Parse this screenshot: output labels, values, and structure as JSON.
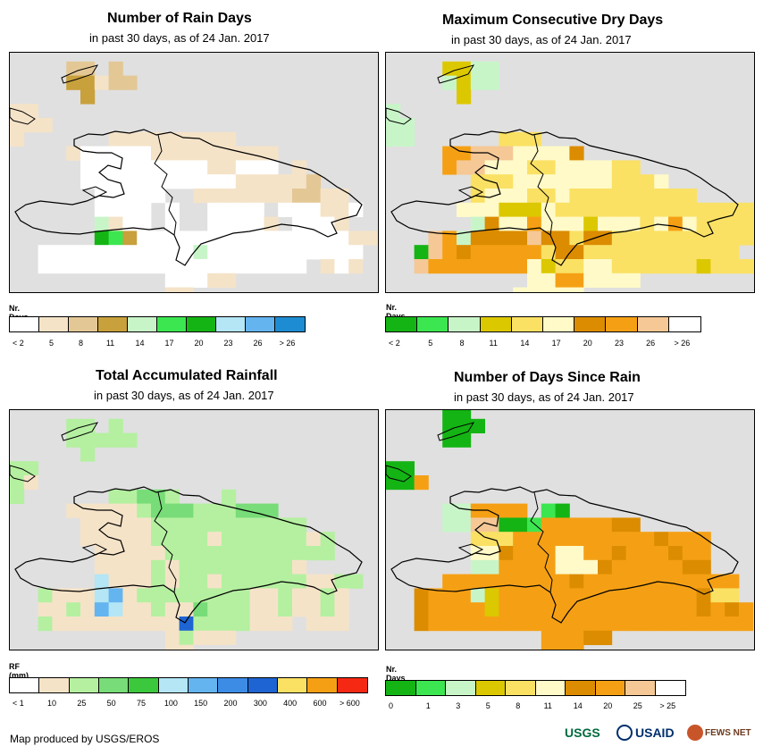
{
  "panels": [
    {
      "title": "Number of Rain Days",
      "subtitle": "in past 30 days, as of 24 Jan. 2017",
      "legend_title": "Nr. Days",
      "legend_colors": [
        "#ffffff",
        "#f5e3c8",
        "#e3c896",
        "#c8a03c",
        "#c8f5c8",
        "#3ce650",
        "#14b414",
        "#b4e6f5",
        "#64b4f0",
        "#1e8cd2"
      ],
      "legend_labels": [
        "< 2",
        "5",
        "8",
        "11",
        "14",
        "17",
        "20",
        "23",
        "26",
        "> 26"
      ],
      "grid": [
        "..........................",
        "....cc.c..................",
        "....ddbcc.................",
        ".....d....................",
        "bb........................",
        "bbb.......................",
        "b......bbbbbbbbb..........",
        "....baaaaabbbbbbbbb.......",
        ".....aaaaaaaaabbaaa.b.....",
        ".....aaaaaaaaaaabbbbbc....",
        "......aaaaa..bbbbbbbccbb..",
        "......aaaa.a..aaaa.aaabba.",
        "......ebaa.a..aaaab.aaab..",
        "......gfdaaaaaaaaaaaaaaabb",
        "..aaaaaaaaaaaeaaaaaaaaaaa.",
        "..aaaaaaaaaaaaaaaaaaa.bab.",
        "...........aaabb..........",
        "...........bb.............",
        "..........................",
        ".........................."
      ]
    },
    {
      "title": "Maximum Consecutive Dry Days",
      "subtitle": "in past 30 days, as of 24 Jan. 2017",
      "legend_title": "Nr. Days",
      "legend_colors": [
        "#14b414",
        "#3ce650",
        "#c8f5c8",
        "#dcc800",
        "#fae164",
        "#fffac8",
        "#dc8c00",
        "#f5a014",
        "#f5c896",
        "#ffffff"
      ],
      "legend_labels": [
        "< 2",
        "5",
        "8",
        "11",
        "14",
        "17",
        "20",
        "23",
        "26",
        "> 26"
      ],
      "grid": [
        "..........................",
        "....ddcc..................",
        "....cdcc..................",
        ".....d....................",
        "c.........................",
        "cc........................",
        "cc......eee...............",
        "....hhiiiffffg............",
        "....hiifffeeffffee........",
        "......eeefffffffeeef......",
        "......efffeefeeeeeeeee....",
        ".....fffdddfeeeeeeeeeeeeee",
        "......cgffhfffdfffefhfeeee",
        "...ihcggggiggeggeeeeeeeeee",
        "..aihghhhhheggeeeeeeeeeee.",
        "..ihhhhhhhfdeeffeeeeeedeee",
        "..........ffhhffff........",
        ".........fffff............",
        "..........................",
        ".........................."
      ]
    },
    {
      "title": "Total Accumulated Rainfall",
      "subtitle": "in past 30 days, as of 24 Jan. 2017",
      "legend_title": "RF (mm)",
      "legend_colors": [
        "#ffffff",
        "#f5e3c8",
        "#b4f0a0",
        "#78dc78",
        "#3cc83c",
        "#b4e6f5",
        "#64b4f0",
        "#3c8ce6",
        "#1e64d2",
        "#fae164",
        "#f5a014",
        "#f52814"
      ],
      "legend_labels": [
        "< 1",
        "10",
        "25",
        "50",
        "75",
        "100",
        "150",
        "200",
        "300",
        "400",
        "600",
        "> 600"
      ],
      "grid": [
        "..........................",
        "....cc.c..................",
        "....ccccc.................",
        ".....c....................",
        "cc........................",
        "cb........................",
        "c......ccddc...c..........",
        "....bbbbbcdddcccddd.......",
        ".....bbbbbccccccccccc.....",
        ".....bbbbbccccbccccccbc...",
        "......bbbbbcccccccccccc...",
        "......bbbbcbccccccccb.....",
        "......fbbbcbccbccccccbbcc.",
        "..cbbbfgbccccccccbbcbbcb..",
        "..bbcbgfbbcbbdcccbbcbbcb..",
        "..cbbbbbbbbbiccccbbb.bbb..",
        "...........bcbbb..........",
        "...........bb.............",
        "..........................",
        ".........................."
      ]
    },
    {
      "title": "Number of Days Since Rain",
      "subtitle": "in past 30 days, as of 24 Jan. 2017",
      "legend_title": "Nr. Days",
      "legend_colors": [
        "#14b414",
        "#3ce650",
        "#c8f5c8",
        "#dcc800",
        "#fae164",
        "#fffac8",
        "#dc8c00",
        "#f5a014",
        "#f5c896",
        "#ffffff"
      ],
      "legend_labels": [
        "0",
        "1",
        "3",
        "5",
        "8",
        "11",
        "14",
        "20",
        "25",
        "> 25"
      ],
      "grid": [
        "....aa....................",
        "....aaa...................",
        "....aa....................",
        "..........................",
        "aa........................",
        "aah.......................",
        "..........................",
        "....cchhhh.ba.............",
        "....cciiaabhhhhhgg........",
        "......eeehhhhhhhhhhghhh...",
        "......ffghhhffhhghhhghh...",
        "......cchhhhfffghhhhhgg...",
        "....hhhhhhhhhghhhhhhhhhhh.",
        "..ghhhcdhhhhhhhhhhhhhhgee.",
        "..ghhhhdhhhhhhhhhhhhhhghgh",
        "..ghhhhhhhhhhhhhhhhhhhhhhh",
        "...........hhhgg..........",
        "...........hhh............",
        "..........................",
        ".........................."
      ]
    }
  ],
  "credit": "Map produced by USGS/EROS",
  "logos": {
    "usgs": "USGS",
    "usaid": "USAID",
    "fews": "FEWS NET"
  }
}
